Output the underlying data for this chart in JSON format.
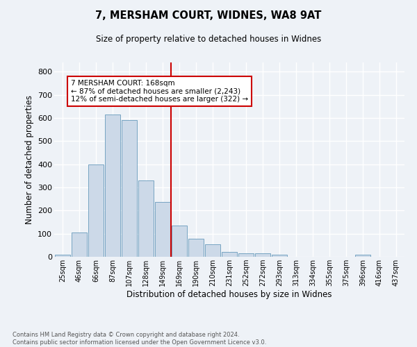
{
  "title": "7, MERSHAM COURT, WIDNES, WA8 9AT",
  "subtitle": "Size of property relative to detached houses in Widnes",
  "xlabel": "Distribution of detached houses by size in Widnes",
  "ylabel": "Number of detached properties",
  "bin_labels": [
    "25sqm",
    "46sqm",
    "66sqm",
    "87sqm",
    "107sqm",
    "128sqm",
    "149sqm",
    "169sqm",
    "190sqm",
    "210sqm",
    "231sqm",
    "252sqm",
    "272sqm",
    "293sqm",
    "313sqm",
    "334sqm",
    "355sqm",
    "375sqm",
    "396sqm",
    "416sqm",
    "437sqm"
  ],
  "bar_values": [
    8,
    106,
    400,
    615,
    592,
    330,
    237,
    135,
    77,
    53,
    22,
    15,
    16,
    8,
    0,
    0,
    0,
    0,
    8,
    0,
    0
  ],
  "bar_color": "#ccd9e8",
  "bar_edge_color": "#6699bb",
  "vline_color": "#cc0000",
  "annotation_text": "7 MERSHAM COURT: 168sqm\n← 87% of detached houses are smaller (2,243)\n12% of semi-detached houses are larger (322) →",
  "annotation_box_color": "#ffffff",
  "annotation_box_edge": "#cc0000",
  "ylim": [
    0,
    840
  ],
  "yticks": [
    0,
    100,
    200,
    300,
    400,
    500,
    600,
    700,
    800
  ],
  "footer_text": "Contains HM Land Registry data © Crown copyright and database right 2024.\nContains public sector information licensed under the Open Government Licence v3.0.",
  "bg_color": "#eef2f7",
  "grid_color": "#ffffff"
}
